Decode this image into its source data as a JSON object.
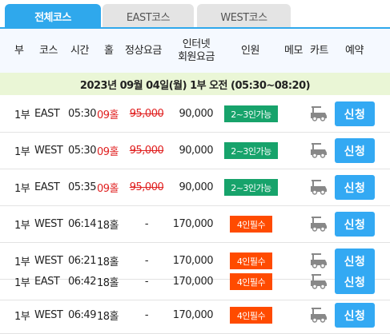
{
  "tabs": [
    {
      "label": "전체코스",
      "active": true
    },
    {
      "label": "EAST코스",
      "active": false
    },
    {
      "label": "WEST코스",
      "active": false
    }
  ],
  "header": {
    "part": "부",
    "course": "코스",
    "time": "시간",
    "hole": "홀",
    "price": "정상요금",
    "net_price_line1": "인터넷",
    "net_price_line2": "회원요금",
    "people": "인원",
    "memo": "메모",
    "cart": "카트",
    "reserve": "예약"
  },
  "date_band": "2023년 09월 04일(월)  1부 오전 (05:30~08:20)",
  "rows": [
    {
      "part": "1부",
      "course": "EAST",
      "time": "05:30",
      "hole": "09홀",
      "price": "95,000",
      "net": "90,000",
      "people": "2~3인가능",
      "reserve": "신청"
    },
    {
      "part": "1부",
      "course": "WEST",
      "time": "05:30",
      "hole": "09홀",
      "price": "95,000",
      "net": "90,000",
      "people": "2~3인가능",
      "reserve": "신청"
    },
    {
      "part": "1부",
      "course": "EAST",
      "time": "05:35",
      "hole": "09홀",
      "price": "95,000",
      "net": "90,000",
      "people": "2~3인가능",
      "reserve": "신청"
    },
    {
      "part": "1부",
      "course": "WEST",
      "time": "06:14",
      "hole": "18홀",
      "price": "-",
      "net": "170,000",
      "people": "4인필수",
      "reserve": "신청"
    },
    {
      "part": "1부",
      "course": "WEST",
      "time": "06:21",
      "hole": "18홀",
      "price": "-",
      "net": "170,000",
      "people": "4인필수",
      "reserve": "신청"
    },
    {
      "part": "1부",
      "course": "EAST",
      "time": "06:42",
      "hole": "18홀",
      "price": "-",
      "net": "170,000",
      "people": "4인필수",
      "reserve": "신청"
    },
    {
      "part": "1부",
      "course": "WEST",
      "time": "06:49",
      "hole": "18홀",
      "price": "-",
      "net": "170,000",
      "people": "4인필수",
      "reserve": "신청"
    }
  ],
  "colors": {
    "accent": "#2fa8ec",
    "button": "#33a9f3",
    "green_badge": "#17a36b",
    "orange_badge": "#ff4b00",
    "red_text": "#e02020",
    "date_band": "#eaf6d6"
  },
  "icons": {
    "cart": "golf-cart-icon"
  }
}
